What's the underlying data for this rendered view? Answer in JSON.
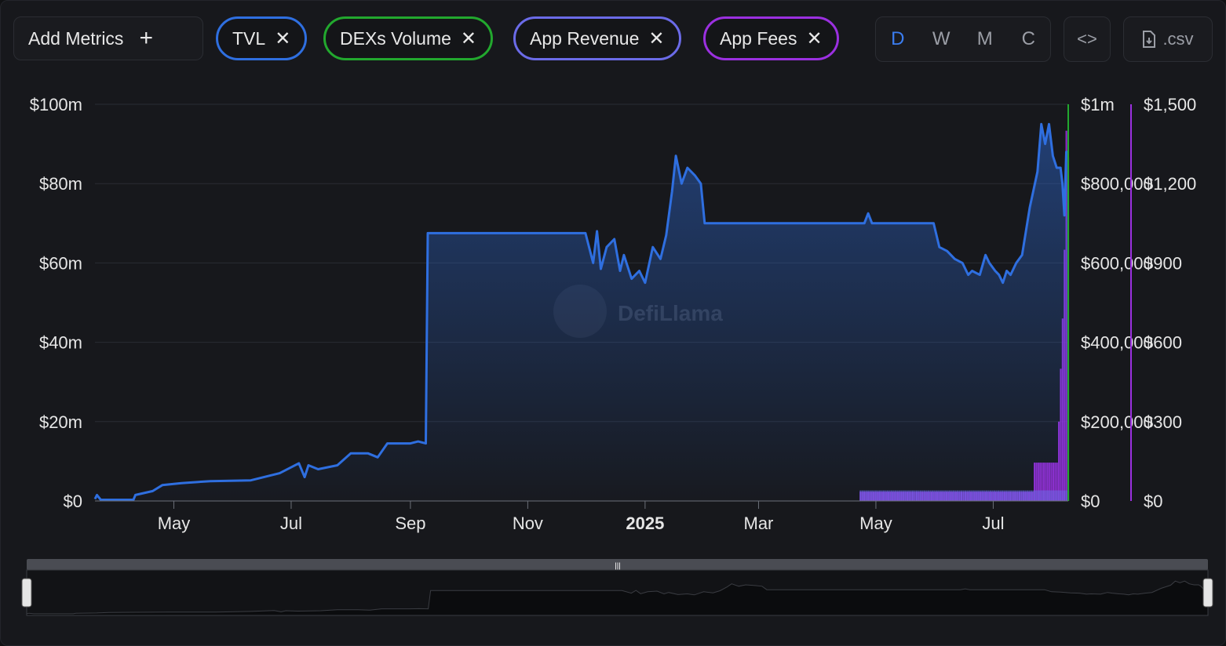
{
  "toolbar": {
    "add_metrics_label": "Add Metrics",
    "metrics": [
      {
        "label": "TVL",
        "color": "#2f6fe0"
      },
      {
        "label": "DEXs Volume",
        "color": "#22a82e"
      },
      {
        "label": "App Revenue",
        "color": "#6b6be8"
      },
      {
        "label": "App Fees",
        "color": "#9b30e0"
      }
    ],
    "granularity": [
      "D",
      "W",
      "M",
      "C"
    ],
    "active_granularity": "D",
    "embed_label": "<>",
    "csv_label": ".csv"
  },
  "watermark": "DefiLlama",
  "chart_data": {
    "type": "line",
    "x_ticks": [
      {
        "label": "May",
        "date": "2024-05-01",
        "bold": false
      },
      {
        "label": "Jul",
        "date": "2024-07-01",
        "bold": false
      },
      {
        "label": "Sep",
        "date": "2024-09-01",
        "bold": false
      },
      {
        "label": "Nov",
        "date": "2024-11-01",
        "bold": false
      },
      {
        "label": "2025",
        "date": "2025-01-01",
        "bold": true
      },
      {
        "label": "Mar",
        "date": "2025-03-01",
        "bold": false
      },
      {
        "label": "May",
        "date": "2025-05-01",
        "bold": false
      },
      {
        "label": "Jul",
        "date": "2025-07-01",
        "bold": false
      }
    ],
    "xlim": [
      "2024-03-21",
      "2025-08-09"
    ],
    "y_axes": {
      "tvl": {
        "ticks": [
          "$0",
          "$20m",
          "$40m",
          "$60m",
          "$80m",
          "$100m"
        ],
        "ylim": [
          0,
          100000000
        ]
      },
      "volume": {
        "ticks": [
          "$0",
          "$200,000",
          "$400,000",
          "$600,000",
          "$800,000",
          "$1m"
        ],
        "ylim": [
          0,
          1000000
        ]
      },
      "fees": {
        "ticks": [
          "$0",
          "$300",
          "$600",
          "$900",
          "$1,200",
          "$1,500"
        ],
        "ylim": [
          0,
          1500
        ]
      }
    },
    "grid": true,
    "series": [
      {
        "name": "TVL",
        "type": "area",
        "color": "#2f6fe0",
        "axis": "tvl",
        "points": [
          [
            "2024-03-21",
            0.5
          ],
          [
            "2024-03-22",
            1.5
          ],
          [
            "2024-03-24",
            0.3
          ],
          [
            "2024-04-10",
            0.3
          ],
          [
            "2024-04-11",
            1.5
          ],
          [
            "2024-04-20",
            2.5
          ],
          [
            "2024-04-25",
            4
          ],
          [
            "2024-05-05",
            4.5
          ],
          [
            "2024-05-20",
            5
          ],
          [
            "2024-06-10",
            5.2
          ],
          [
            "2024-06-25",
            7
          ],
          [
            "2024-07-05",
            9.5
          ],
          [
            "2024-07-08",
            6
          ],
          [
            "2024-07-10",
            9
          ],
          [
            "2024-07-15",
            8
          ],
          [
            "2024-07-25",
            9
          ],
          [
            "2024-08-01",
            12
          ],
          [
            "2024-08-10",
            12
          ],
          [
            "2024-08-15",
            11
          ],
          [
            "2024-08-20",
            14.5
          ],
          [
            "2024-09-01",
            14.5
          ],
          [
            "2024-09-05",
            15
          ],
          [
            "2024-09-09",
            14.5
          ],
          [
            "2024-09-10",
            67.5
          ],
          [
            "2024-12-01",
            67.5
          ],
          [
            "2024-12-05",
            60
          ],
          [
            "2024-12-07",
            68
          ],
          [
            "2024-12-09",
            58.5
          ],
          [
            "2024-12-12",
            64
          ],
          [
            "2024-12-16",
            66
          ],
          [
            "2024-12-19",
            58
          ],
          [
            "2024-12-21",
            62
          ],
          [
            "2024-12-25",
            56
          ],
          [
            "2024-12-29",
            58
          ],
          [
            "2025-01-01",
            55
          ],
          [
            "2025-01-05",
            64
          ],
          [
            "2025-01-09",
            61
          ],
          [
            "2025-01-12",
            67
          ],
          [
            "2025-01-15",
            78
          ],
          [
            "2025-01-17",
            87
          ],
          [
            "2025-01-20",
            80
          ],
          [
            "2025-01-23",
            84
          ],
          [
            "2025-01-27",
            82
          ],
          [
            "2025-01-30",
            80
          ],
          [
            "2025-02-01",
            70
          ],
          [
            "2025-04-25",
            70
          ],
          [
            "2025-04-27",
            72.5
          ],
          [
            "2025-04-29",
            70
          ],
          [
            "2025-05-31",
            70
          ],
          [
            "2025-06-03",
            64
          ],
          [
            "2025-06-07",
            63
          ],
          [
            "2025-06-11",
            61
          ],
          [
            "2025-06-15",
            60
          ],
          [
            "2025-06-18",
            57
          ],
          [
            "2025-06-20",
            58
          ],
          [
            "2025-06-24",
            57
          ],
          [
            "2025-06-27",
            62
          ],
          [
            "2025-06-29",
            60
          ],
          [
            "2025-07-02",
            58
          ],
          [
            "2025-07-04",
            57
          ],
          [
            "2025-07-06",
            55
          ],
          [
            "2025-07-08",
            58
          ],
          [
            "2025-07-10",
            57
          ],
          [
            "2025-07-13",
            60
          ],
          [
            "2025-07-16",
            62
          ],
          [
            "2025-07-20",
            74
          ],
          [
            "2025-07-24",
            83
          ],
          [
            "2025-07-26",
            95
          ],
          [
            "2025-07-28",
            90
          ],
          [
            "2025-07-30",
            95
          ],
          [
            "2025-08-01",
            87
          ],
          [
            "2025-08-03",
            84
          ],
          [
            "2025-08-05",
            84
          ],
          [
            "2025-08-06",
            80
          ],
          [
            "2025-08-07",
            72
          ],
          [
            "2025-08-08",
            88
          ],
          [
            "2025-08-09",
            88
          ]
        ]
      },
      {
        "name": "DEXs Volume",
        "type": "bar",
        "color": "#22a82e",
        "axis": "volume",
        "start_date": "2025-01-26",
        "end_date": "2025-08-09",
        "values": [
          140,
          90,
          160,
          110,
          60,
          200,
          150,
          120,
          95,
          180,
          220,
          130,
          80,
          100,
          270,
          160,
          90,
          140,
          120,
          190,
          250,
          110,
          70,
          160,
          140,
          200,
          90,
          130,
          170,
          80,
          120,
          150,
          210,
          100,
          60,
          140,
          180,
          90,
          110,
          160,
          130,
          70,
          150,
          200,
          120,
          85,
          60,
          100,
          140,
          170,
          110,
          90,
          160,
          120,
          75,
          95,
          130,
          60,
          40,
          80,
          120,
          160,
          90,
          100,
          180,
          230,
          140,
          110,
          60,
          140,
          200,
          180,
          90,
          60,
          50,
          80,
          120,
          90,
          60,
          100,
          150,
          70,
          80,
          130,
          110,
          60,
          90,
          170,
          130,
          60,
          120,
          150,
          200,
          90,
          180,
          260,
          140,
          120,
          80,
          250,
          170,
          110,
          95,
          200,
          160,
          130,
          610,
          180,
          140,
          100,
          180,
          120,
          80,
          100,
          90,
          160,
          110,
          70,
          130,
          150,
          100,
          90,
          140,
          110,
          70,
          260,
          180,
          100,
          80,
          60,
          150,
          120,
          130,
          100,
          80,
          90,
          170,
          110,
          60,
          140,
          100,
          80,
          120,
          150,
          90,
          120,
          100,
          170,
          140,
          60,
          100,
          180,
          90,
          130,
          110,
          160,
          120,
          200,
          170,
          100,
          90,
          140,
          230,
          280,
          310,
          260,
          290,
          200,
          140,
          120,
          100,
          160,
          230,
          380,
          180,
          260,
          140,
          280,
          90,
          180,
          160,
          60,
          100,
          1000
        ]
      },
      {
        "name": "App Revenue",
        "type": "bar",
        "color": "#6b6be8",
        "axis": "fees",
        "start_date": "2025-04-23",
        "end_date": "2025-08-09",
        "values": [
          40,
          40,
          40,
          40,
          40,
          40,
          40,
          40,
          40,
          40,
          40,
          40,
          40,
          40,
          40,
          40,
          40,
          40,
          40,
          40,
          40,
          40,
          40,
          40,
          40,
          40,
          40,
          40,
          40,
          40,
          40,
          40,
          40,
          40,
          40,
          40,
          40,
          40,
          40,
          40,
          40,
          40,
          40,
          40,
          40,
          40,
          40,
          40,
          40,
          40,
          40,
          40,
          40,
          40,
          40,
          40,
          40,
          40,
          40,
          40,
          40,
          40,
          40,
          40,
          40,
          40,
          40,
          40,
          40,
          40,
          40,
          40,
          40,
          40,
          40,
          40,
          40,
          40,
          40,
          40,
          40,
          40,
          40,
          40,
          40,
          40,
          40,
          40,
          40,
          40,
          40,
          40,
          40,
          40,
          40,
          40,
          40,
          40,
          40,
          40,
          40,
          40,
          40,
          40,
          40,
          40,
          40,
          40
        ]
      },
      {
        "name": "App Fees",
        "type": "bar",
        "color": "#9b30e0",
        "axis": "fees",
        "start_date": "2025-04-23",
        "end_date": "2025-08-09",
        "values": [
          35,
          35,
          35,
          35,
          35,
          35,
          35,
          35,
          35,
          35,
          35,
          35,
          35,
          35,
          35,
          35,
          35,
          35,
          35,
          35,
          35,
          35,
          35,
          35,
          35,
          35,
          35,
          35,
          35,
          35,
          35,
          35,
          35,
          35,
          35,
          35,
          35,
          35,
          35,
          35,
          35,
          35,
          35,
          35,
          35,
          35,
          35,
          35,
          35,
          35,
          35,
          35,
          35,
          35,
          35,
          35,
          35,
          35,
          35,
          35,
          35,
          35,
          35,
          35,
          35,
          35,
          35,
          35,
          35,
          35,
          35,
          35,
          35,
          35,
          35,
          35,
          35,
          35,
          35,
          35,
          35,
          35,
          35,
          35,
          35,
          35,
          35,
          35,
          35,
          35,
          35,
          35,
          35,
          145,
          145,
          145,
          145,
          145,
          145,
          145,
          145,
          145,
          145,
          145,
          145,
          145,
          300,
          500,
          690,
          950,
          1400,
          1300
        ]
      }
    ]
  }
}
